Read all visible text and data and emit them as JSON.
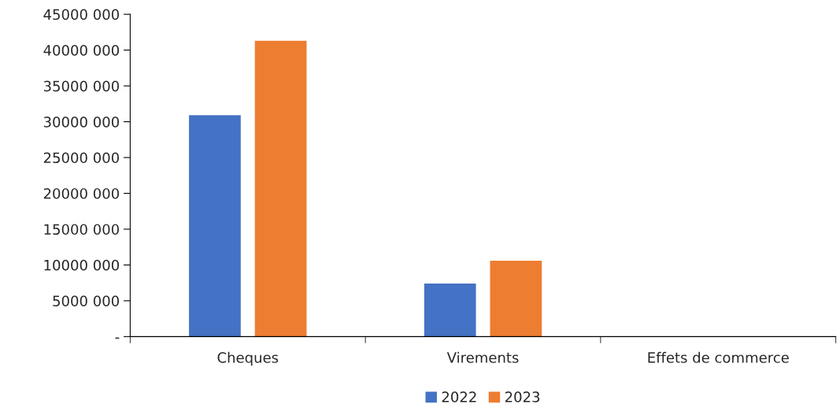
{
  "chart_data": {
    "type": "bar",
    "categories": [
      "Cheques",
      "Virements",
      "Effets de commerce"
    ],
    "series": [
      {
        "name": "2022",
        "color": "#4472c4",
        "values": [
          30900000,
          7400000,
          null
        ]
      },
      {
        "name": "2023",
        "color": "#ed7d31",
        "values": [
          41300000,
          10600000,
          null
        ]
      }
    ],
    "ylim": [
      0,
      45000000
    ],
    "yticks": [
      {
        "value": 0,
        "label": "-"
      },
      {
        "value": 5000000,
        "label": "5000 000"
      },
      {
        "value": 10000000,
        "label": "10000 000"
      },
      {
        "value": 15000000,
        "label": "15000 000"
      },
      {
        "value": 20000000,
        "label": "20000 000"
      },
      {
        "value": 25000000,
        "label": "25000 000"
      },
      {
        "value": 30000000,
        "label": "30000 000"
      },
      {
        "value": 35000000,
        "label": "35000 000"
      },
      {
        "value": 40000000,
        "label": "40000 000"
      },
      {
        "value": 45000000,
        "label": "45000 000"
      }
    ],
    "grid": false,
    "legend": "bottom"
  }
}
